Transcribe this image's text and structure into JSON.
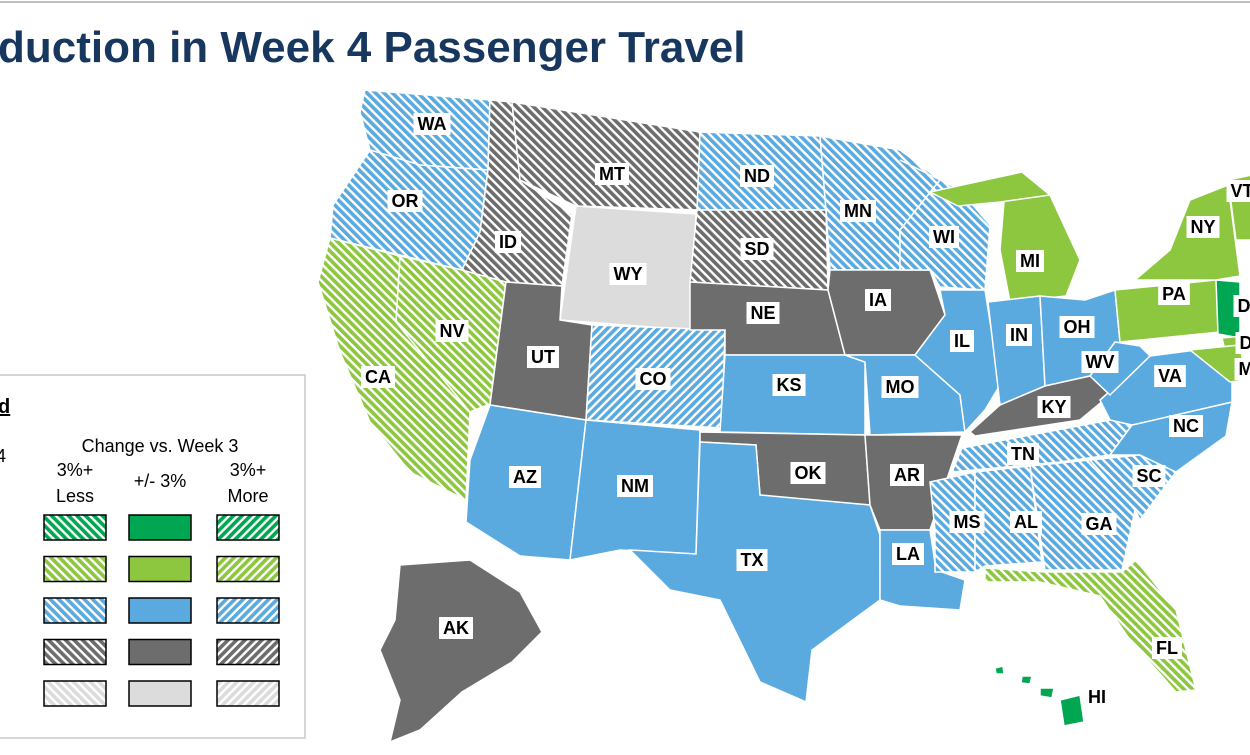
{
  "header": {
    "title": "duction in Week 4 Passenger Travel"
  },
  "legend": {
    "title": "d",
    "subtitle": "4",
    "heading": "Change vs. Week 3",
    "columns": [
      {
        "line1": "3%+",
        "line2": "Less",
        "change": "less"
      },
      {
        "line1": "+/- 3%",
        "change": "same"
      },
      {
        "line1": "3%+",
        "line2": "More",
        "change": "more"
      }
    ],
    "colors": [
      "#00a651",
      "#8dc63f",
      "#5aaae0",
      "#6d6d6d",
      "#dcdcdc"
    ]
  },
  "states": [
    {
      "label": "WA",
      "color": "#5aaae0",
      "change": "less"
    },
    {
      "label": "OR",
      "color": "#5aaae0",
      "change": "less"
    },
    {
      "label": "CA",
      "color": "#8dc63f",
      "change": "less"
    },
    {
      "label": "NV",
      "color": "#8dc63f",
      "change": "less"
    },
    {
      "label": "ID",
      "color": "#6d6d6d",
      "change": "less"
    },
    {
      "label": "MT",
      "color": "#6d6d6d",
      "change": "less"
    },
    {
      "label": "WY",
      "color": "#dcdcdc",
      "change": "same"
    },
    {
      "label": "UT",
      "color": "#6d6d6d",
      "change": "same"
    },
    {
      "label": "CO",
      "color": "#5aaae0",
      "change": "more"
    },
    {
      "label": "AZ",
      "color": "#5aaae0",
      "change": "same"
    },
    {
      "label": "NM",
      "color": "#5aaae0",
      "change": "same"
    },
    {
      "label": "ND",
      "color": "#5aaae0",
      "change": "less"
    },
    {
      "label": "SD",
      "color": "#6d6d6d",
      "change": "less"
    },
    {
      "label": "NE",
      "color": "#6d6d6d",
      "change": "same"
    },
    {
      "label": "KS",
      "color": "#5aaae0",
      "change": "same"
    },
    {
      "label": "OK",
      "color": "#6d6d6d",
      "change": "same"
    },
    {
      "label": "TX",
      "color": "#5aaae0",
      "change": "same"
    },
    {
      "label": "MN",
      "color": "#5aaae0",
      "change": "less"
    },
    {
      "label": "IA",
      "color": "#6d6d6d",
      "change": "same"
    },
    {
      "label": "MO",
      "color": "#5aaae0",
      "change": "same"
    },
    {
      "label": "AR",
      "color": "#6d6d6d",
      "change": "same"
    },
    {
      "label": "LA",
      "color": "#5aaae0",
      "change": "same"
    },
    {
      "label": "WI",
      "color": "#5aaae0",
      "change": "less"
    },
    {
      "label": "IL",
      "color": "#5aaae0",
      "change": "same"
    },
    {
      "label": "MI",
      "color": "#8dc63f",
      "change": "same"
    },
    {
      "label": "IN",
      "color": "#5aaae0",
      "change": "same"
    },
    {
      "label": "OH",
      "color": "#5aaae0",
      "change": "same"
    },
    {
      "label": "KY",
      "color": "#6d6d6d",
      "change": "same"
    },
    {
      "label": "TN",
      "color": "#5aaae0",
      "change": "less"
    },
    {
      "label": "MS",
      "color": "#5aaae0",
      "change": "less"
    },
    {
      "label": "AL",
      "color": "#5aaae0",
      "change": "less"
    },
    {
      "label": "GA",
      "color": "#5aaae0",
      "change": "less"
    },
    {
      "label": "FL",
      "color": "#8dc63f",
      "change": "less"
    },
    {
      "label": "SC",
      "color": "#5aaae0",
      "change": "less"
    },
    {
      "label": "NC",
      "color": "#5aaae0",
      "change": "same"
    },
    {
      "label": "VA",
      "color": "#5aaae0",
      "change": "same"
    },
    {
      "label": "WV",
      "color": "#5aaae0",
      "change": "same"
    },
    {
      "label": "PA",
      "color": "#8dc63f",
      "change": "same"
    },
    {
      "label": "NY",
      "color": "#8dc63f",
      "change": "same"
    },
    {
      "label": "VT",
      "color": "#8dc63f",
      "change": "same"
    },
    {
      "label": "D",
      "color": "#00a651",
      "change": "same"
    },
    {
      "label": "D",
      "color": "#8dc63f",
      "change": "same"
    },
    {
      "label": "M",
      "color": "#8dc63f",
      "change": "same"
    },
    {
      "label": "AK",
      "color": "#6d6d6d",
      "change": "same"
    },
    {
      "label": "HI",
      "color": "#00a651",
      "change": "same"
    }
  ]
}
